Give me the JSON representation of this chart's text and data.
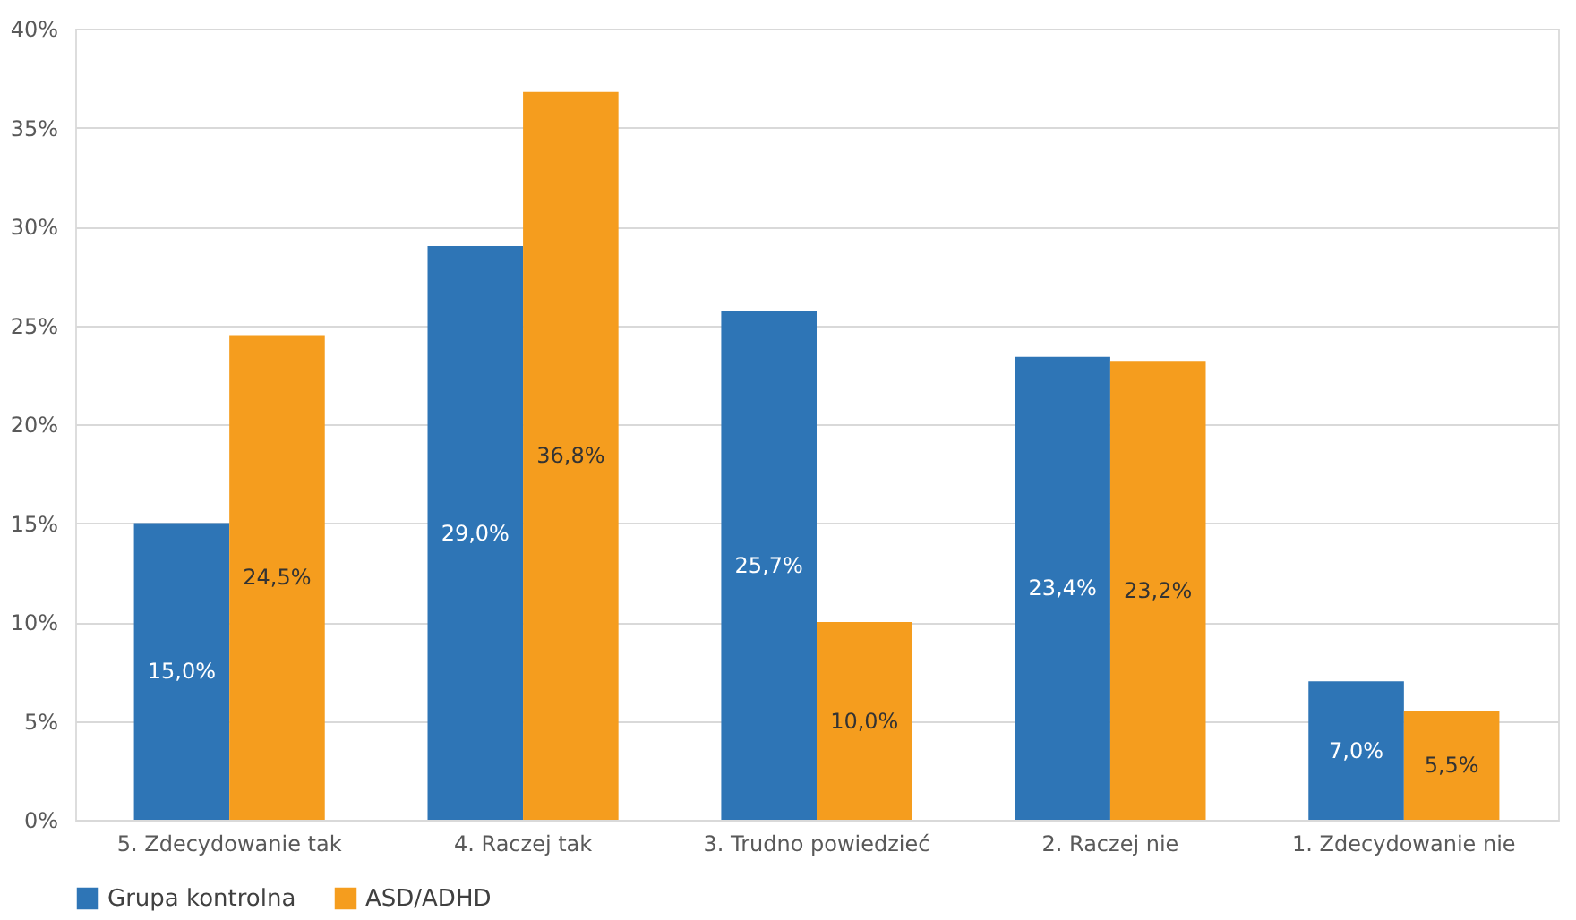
{
  "chart_data": {
    "type": "bar",
    "categories": [
      "5. Zdecydowanie tak",
      "4. Raczej tak",
      "3. Trudno powiedzieć",
      "2. Raczej nie",
      "1. Zdecydowanie nie"
    ],
    "series": [
      {
        "name": "Grupa kontrolna",
        "color": "#2e75b6",
        "values": [
          15.0,
          29.0,
          25.7,
          23.4,
          7.0
        ],
        "value_labels": [
          "15,0%",
          "29,0%",
          "25,7%",
          "23,4%",
          "7,0%"
        ]
      },
      {
        "name": "ASD/ADHD",
        "color": "#f59d1e",
        "values": [
          24.5,
          36.8,
          10.0,
          23.2,
          5.5
        ],
        "value_labels": [
          "24,5%",
          "36,8%",
          "10,0%",
          "23,2%",
          "5,5%"
        ]
      }
    ],
    "ylim": [
      0,
      40
    ],
    "yticks": [
      {
        "value": 0,
        "label": "0%"
      },
      {
        "value": 5,
        "label": "5%"
      },
      {
        "value": 10,
        "label": "10%"
      },
      {
        "value": 15,
        "label": "15%"
      },
      {
        "value": 20,
        "label": "20%"
      },
      {
        "value": 25,
        "label": "25%"
      },
      {
        "value": 30,
        "label": "30%"
      },
      {
        "value": 35,
        "label": "35%"
      },
      {
        "value": 40,
        "label": "40%"
      }
    ],
    "grid": "y",
    "legend": "bottom"
  }
}
